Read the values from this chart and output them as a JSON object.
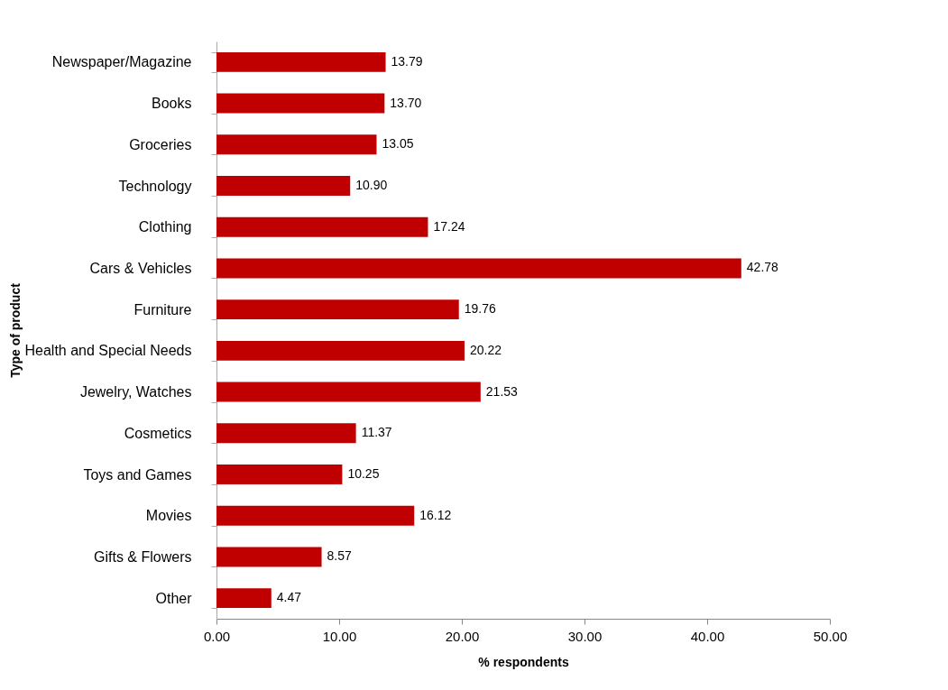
{
  "chart_data": {
    "type": "bar",
    "orientation": "horizontal",
    "xlabel": "% respondents",
    "ylabel": "Type of product",
    "categories": [
      "Newspaper/Magazine",
      "Books",
      "Groceries",
      "Technology",
      "Clothing",
      "Cars & Vehicles",
      "Furniture",
      "Health and Special Needs",
      "Jewelry, Watches",
      "Cosmetics",
      "Toys and Games",
      "Movies",
      "Gifts & Flowers",
      "Other"
    ],
    "values": [
      13.79,
      13.7,
      13.05,
      10.9,
      17.24,
      42.78,
      19.76,
      20.22,
      21.53,
      11.37,
      10.25,
      16.12,
      8.57,
      4.47
    ],
    "value_labels": [
      "13.79",
      "13.70",
      "13.05",
      "10.90",
      "17.24",
      "42.78",
      "19.76",
      "20.22",
      "21.53",
      "11.37",
      "10.25",
      "16.12",
      "8.57",
      "4.47"
    ],
    "color": "#c00000",
    "xlim": [
      0,
      50
    ],
    "xticks": [
      {
        "value": 0,
        "label": "0.00"
      },
      {
        "value": 10,
        "label": "10.00"
      },
      {
        "value": 20,
        "label": "20.00"
      },
      {
        "value": 30,
        "label": "30.00"
      },
      {
        "value": 40,
        "label": "40.00"
      },
      {
        "value": 50,
        "label": "50.00"
      }
    ],
    "grid": false
  }
}
